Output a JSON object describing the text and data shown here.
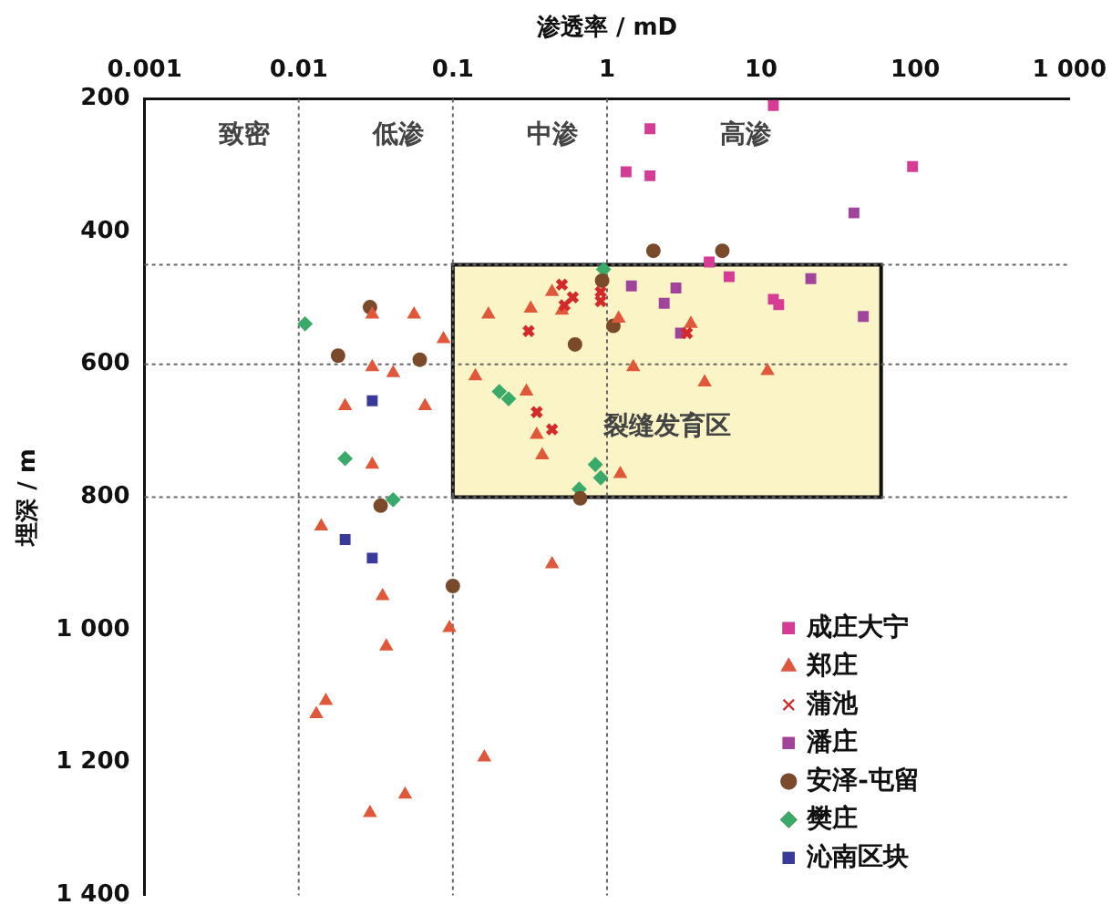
{
  "chart_data": {
    "type": "scatter",
    "xlabel": "渗透率 / mD",
    "ylabel": "埋深 / m",
    "log": "x",
    "xlim": [
      0.001,
      1000
    ],
    "xticks": [
      0.001,
      0.01,
      0.1,
      1,
      10,
      100,
      {
        "value": 1000,
        "label": "1 000"
      }
    ],
    "ylim": [
      1400,
      200
    ],
    "yticks": [
      200,
      400,
      600,
      800,
      {
        "value": 1000,
        "label": "1 000"
      },
      {
        "value": 1200,
        "label": "1 200"
      },
      {
        "value": 1400,
        "label": "1 400"
      }
    ],
    "grid": false,
    "legend": "bottom right",
    "ref_lines": [
      {
        "axis": "x",
        "value": 0.01,
        "line_style": "dotted"
      },
      {
        "axis": "x",
        "value": 0.1,
        "line_style": "dotted"
      },
      {
        "axis": "x",
        "value": 1,
        "line_style": "dotted"
      },
      {
        "axis": "y",
        "value": 450,
        "line_style": "dotted"
      },
      {
        "axis": "y",
        "value": 600,
        "line_style": "dotted"
      },
      {
        "axis": "y",
        "value": 800,
        "line_style": "dotted"
      }
    ],
    "bands": [
      {
        "axis": "x",
        "from": 0.1,
        "to": 60,
        "color": "#fbf4c6"
      }
    ],
    "annotations": [
      "致密",
      "低渗",
      "中渗",
      "高渗",
      "裂缝发育区"
    ],
    "series": [
      {
        "name": "成庄大宁",
        "color": "#d63c96",
        "marker": "square",
        "x": [
          12,
          1.9,
          1.33,
          1.9,
          96,
          4.6,
          12,
          13,
          6.2
        ],
        "values": [
          210,
          245,
          310,
          316,
          302,
          446,
          502,
          510,
          468
        ]
      },
      {
        "name": "郑庄",
        "color": "#e0583a",
        "marker": "triangle",
        "x": [
          0.03,
          0.056,
          0.087,
          0.17,
          0.32,
          0.44,
          0.51,
          0.03,
          0.041,
          0.02,
          0.066,
          0.14,
          0.3,
          0.35,
          0.38,
          0.03,
          1.19,
          3.5,
          1.48,
          4.3,
          11,
          1.22,
          0.014,
          0.44,
          0.035,
          0.095,
          0.037,
          0.015,
          0.013,
          0.16,
          0.049,
          0.029
        ],
        "values": [
          525,
          525,
          562,
          525,
          516,
          491,
          519,
          604,
          613,
          663,
          663,
          618,
          641,
          706,
          737,
          751,
          531,
          539,
          604,
          627,
          610,
          765,
          844,
          901,
          949,
          997,
          1025,
          1107,
          1127,
          1192,
          1248,
          1276
        ]
      },
      {
        "name": "蒲池",
        "color": "#d42a2a",
        "marker": "cross",
        "x": [
          0.51,
          0.6,
          0.53,
          0.91,
          0.91,
          0.31,
          0.35,
          0.44,
          3.3
        ],
        "values": [
          480,
          499,
          511,
          491,
          505,
          550,
          672,
          698,
          553
        ]
      },
      {
        "name": "潘庄",
        "color": "#a0449c",
        "marker": "square",
        "x": [
          40,
          1.44,
          2.8,
          2.35,
          46,
          3,
          21
        ],
        "values": [
          372,
          482,
          485,
          508,
          528,
          553,
          471
        ]
      },
      {
        "name": "安泽-屯留",
        "color": "#7a4a2a",
        "marker": "circle",
        "x": [
          0.029,
          0.018,
          0.061,
          0.62,
          0.93,
          1.1,
          0.034,
          0.67,
          2,
          5.6,
          0.1
        ],
        "values": [
          514,
          587,
          593,
          570,
          474,
          542,
          813,
          802,
          429,
          429,
          934
        ]
      },
      {
        "name": "樊庄",
        "color": "#3aaa6a",
        "marker": "diamond",
        "x": [
          0.011,
          0.2,
          0.23,
          0.02,
          0.041,
          0.84,
          0.91,
          0.66,
          0.95
        ],
        "values": [
          539,
          641,
          652,
          742,
          804,
          751,
          771,
          788,
          457
        ]
      },
      {
        "name": "沁南区块",
        "color": "#3a3a9a",
        "marker": "square",
        "x": [
          0.03,
          0.02,
          0.03
        ],
        "values": [
          655,
          864,
          892
        ]
      }
    ]
  }
}
